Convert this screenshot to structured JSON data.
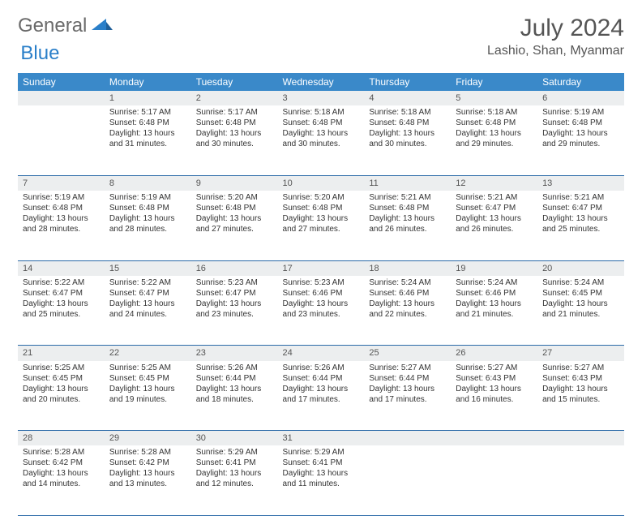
{
  "logo": {
    "general": "General",
    "blue": "Blue"
  },
  "title": "July 2024",
  "location": "Lashio, Shan, Myanmar",
  "colors": {
    "header_bg": "#3a89c9",
    "header_text": "#ffffff",
    "daynum_bg": "#eceeef",
    "cell_border": "#2a6aa8",
    "body_text": "#333333",
    "title_text": "#555555"
  },
  "weekdays": [
    "Sunday",
    "Monday",
    "Tuesday",
    "Wednesday",
    "Thursday",
    "Friday",
    "Saturday"
  ],
  "weeks": [
    {
      "nums": [
        "",
        "1",
        "2",
        "3",
        "4",
        "5",
        "6"
      ],
      "cells": [
        null,
        {
          "sunrise": "Sunrise: 5:17 AM",
          "sunset": "Sunset: 6:48 PM",
          "day1": "Daylight: 13 hours",
          "day2": "and 31 minutes."
        },
        {
          "sunrise": "Sunrise: 5:17 AM",
          "sunset": "Sunset: 6:48 PM",
          "day1": "Daylight: 13 hours",
          "day2": "and 30 minutes."
        },
        {
          "sunrise": "Sunrise: 5:18 AM",
          "sunset": "Sunset: 6:48 PM",
          "day1": "Daylight: 13 hours",
          "day2": "and 30 minutes."
        },
        {
          "sunrise": "Sunrise: 5:18 AM",
          "sunset": "Sunset: 6:48 PM",
          "day1": "Daylight: 13 hours",
          "day2": "and 30 minutes."
        },
        {
          "sunrise": "Sunrise: 5:18 AM",
          "sunset": "Sunset: 6:48 PM",
          "day1": "Daylight: 13 hours",
          "day2": "and 29 minutes."
        },
        {
          "sunrise": "Sunrise: 5:19 AM",
          "sunset": "Sunset: 6:48 PM",
          "day1": "Daylight: 13 hours",
          "day2": "and 29 minutes."
        }
      ]
    },
    {
      "nums": [
        "7",
        "8",
        "9",
        "10",
        "11",
        "12",
        "13"
      ],
      "cells": [
        {
          "sunrise": "Sunrise: 5:19 AM",
          "sunset": "Sunset: 6:48 PM",
          "day1": "Daylight: 13 hours",
          "day2": "and 28 minutes."
        },
        {
          "sunrise": "Sunrise: 5:19 AM",
          "sunset": "Sunset: 6:48 PM",
          "day1": "Daylight: 13 hours",
          "day2": "and 28 minutes."
        },
        {
          "sunrise": "Sunrise: 5:20 AM",
          "sunset": "Sunset: 6:48 PM",
          "day1": "Daylight: 13 hours",
          "day2": "and 27 minutes."
        },
        {
          "sunrise": "Sunrise: 5:20 AM",
          "sunset": "Sunset: 6:48 PM",
          "day1": "Daylight: 13 hours",
          "day2": "and 27 minutes."
        },
        {
          "sunrise": "Sunrise: 5:21 AM",
          "sunset": "Sunset: 6:48 PM",
          "day1": "Daylight: 13 hours",
          "day2": "and 26 minutes."
        },
        {
          "sunrise": "Sunrise: 5:21 AM",
          "sunset": "Sunset: 6:47 PM",
          "day1": "Daylight: 13 hours",
          "day2": "and 26 minutes."
        },
        {
          "sunrise": "Sunrise: 5:21 AM",
          "sunset": "Sunset: 6:47 PM",
          "day1": "Daylight: 13 hours",
          "day2": "and 25 minutes."
        }
      ]
    },
    {
      "nums": [
        "14",
        "15",
        "16",
        "17",
        "18",
        "19",
        "20"
      ],
      "cells": [
        {
          "sunrise": "Sunrise: 5:22 AM",
          "sunset": "Sunset: 6:47 PM",
          "day1": "Daylight: 13 hours",
          "day2": "and 25 minutes."
        },
        {
          "sunrise": "Sunrise: 5:22 AM",
          "sunset": "Sunset: 6:47 PM",
          "day1": "Daylight: 13 hours",
          "day2": "and 24 minutes."
        },
        {
          "sunrise": "Sunrise: 5:23 AM",
          "sunset": "Sunset: 6:47 PM",
          "day1": "Daylight: 13 hours",
          "day2": "and 23 minutes."
        },
        {
          "sunrise": "Sunrise: 5:23 AM",
          "sunset": "Sunset: 6:46 PM",
          "day1": "Daylight: 13 hours",
          "day2": "and 23 minutes."
        },
        {
          "sunrise": "Sunrise: 5:24 AM",
          "sunset": "Sunset: 6:46 PM",
          "day1": "Daylight: 13 hours",
          "day2": "and 22 minutes."
        },
        {
          "sunrise": "Sunrise: 5:24 AM",
          "sunset": "Sunset: 6:46 PM",
          "day1": "Daylight: 13 hours",
          "day2": "and 21 minutes."
        },
        {
          "sunrise": "Sunrise: 5:24 AM",
          "sunset": "Sunset: 6:45 PM",
          "day1": "Daylight: 13 hours",
          "day2": "and 21 minutes."
        }
      ]
    },
    {
      "nums": [
        "21",
        "22",
        "23",
        "24",
        "25",
        "26",
        "27"
      ],
      "cells": [
        {
          "sunrise": "Sunrise: 5:25 AM",
          "sunset": "Sunset: 6:45 PM",
          "day1": "Daylight: 13 hours",
          "day2": "and 20 minutes."
        },
        {
          "sunrise": "Sunrise: 5:25 AM",
          "sunset": "Sunset: 6:45 PM",
          "day1": "Daylight: 13 hours",
          "day2": "and 19 minutes."
        },
        {
          "sunrise": "Sunrise: 5:26 AM",
          "sunset": "Sunset: 6:44 PM",
          "day1": "Daylight: 13 hours",
          "day2": "and 18 minutes."
        },
        {
          "sunrise": "Sunrise: 5:26 AM",
          "sunset": "Sunset: 6:44 PM",
          "day1": "Daylight: 13 hours",
          "day2": "and 17 minutes."
        },
        {
          "sunrise": "Sunrise: 5:27 AM",
          "sunset": "Sunset: 6:44 PM",
          "day1": "Daylight: 13 hours",
          "day2": "and 17 minutes."
        },
        {
          "sunrise": "Sunrise: 5:27 AM",
          "sunset": "Sunset: 6:43 PM",
          "day1": "Daylight: 13 hours",
          "day2": "and 16 minutes."
        },
        {
          "sunrise": "Sunrise: 5:27 AM",
          "sunset": "Sunset: 6:43 PM",
          "day1": "Daylight: 13 hours",
          "day2": "and 15 minutes."
        }
      ]
    },
    {
      "nums": [
        "28",
        "29",
        "30",
        "31",
        "",
        "",
        ""
      ],
      "cells": [
        {
          "sunrise": "Sunrise: 5:28 AM",
          "sunset": "Sunset: 6:42 PM",
          "day1": "Daylight: 13 hours",
          "day2": "and 14 minutes."
        },
        {
          "sunrise": "Sunrise: 5:28 AM",
          "sunset": "Sunset: 6:42 PM",
          "day1": "Daylight: 13 hours",
          "day2": "and 13 minutes."
        },
        {
          "sunrise": "Sunrise: 5:29 AM",
          "sunset": "Sunset: 6:41 PM",
          "day1": "Daylight: 13 hours",
          "day2": "and 12 minutes."
        },
        {
          "sunrise": "Sunrise: 5:29 AM",
          "sunset": "Sunset: 6:41 PM",
          "day1": "Daylight: 13 hours",
          "day2": "and 11 minutes."
        },
        null,
        null,
        null
      ]
    }
  ]
}
